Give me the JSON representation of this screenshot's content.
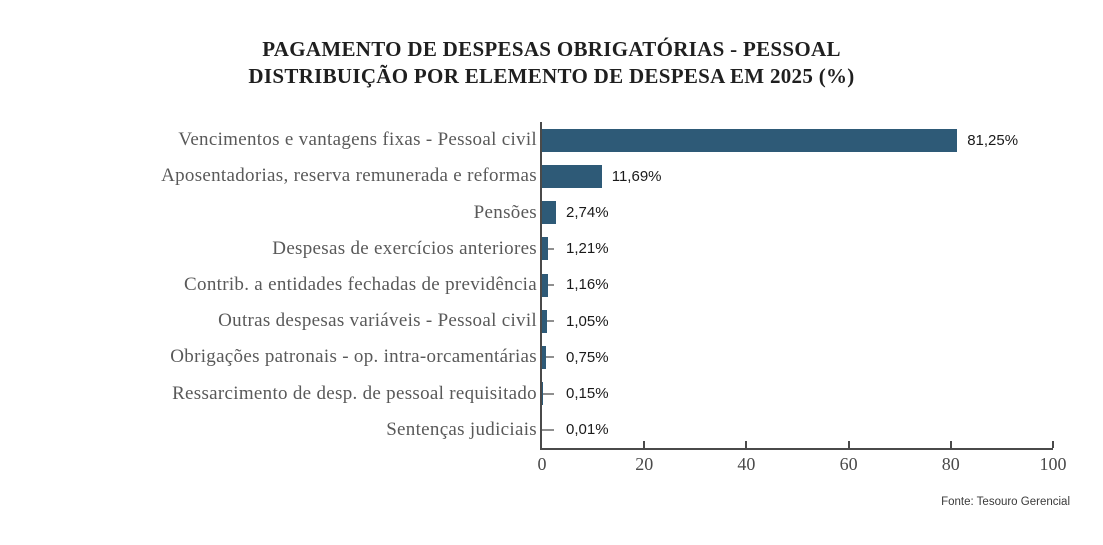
{
  "title": {
    "line1": "PAGAMENTO DE DESPESAS OBRIGATÓRIAS - PESSOAL",
    "line2": "DISTRIBUIÇÃO POR ELEMENTO DE DESPESA EM 2025 (%)"
  },
  "source": "Fonte: Tesouro Gerencial",
  "chart_data": {
    "type": "bar",
    "orientation": "horizontal",
    "title": "PAGAMENTO DE DESPESAS OBRIGATÓRIAS - PESSOAL — DISTRIBUIÇÃO POR ELEMENTO DE DESPESA EM 2025 (%)",
    "categories": [
      "Vencimentos e vantagens fixas - Pessoal civil",
      "Aposentadorias, reserva remunerada e reformas",
      "Pensões",
      "Despesas de exercícios anteriores",
      "Contrib. a entidades fechadas de previdência",
      "Outras despesas variáveis - Pessoal civil",
      "Obrigações patronais - op. intra-orcamentárias",
      "Ressarcimento de desp. de pessoal requisitado",
      "Sentenças judiciais"
    ],
    "values": [
      81.25,
      11.69,
      2.74,
      1.21,
      1.16,
      1.05,
      0.75,
      0.15,
      0.01
    ],
    "value_labels": [
      "81,25%",
      "11,69%",
      "2,74%",
      "1,21%",
      "1,16%",
      "1,05%",
      "0,75%",
      "0,15%",
      "0,01%"
    ],
    "xlabel": "",
    "ylabel": "",
    "xlim": [
      0,
      100
    ],
    "x_ticks": [
      0,
      20,
      40,
      60,
      80,
      100
    ],
    "bar_color": "#2e5a77",
    "axis_color": "#4a4a4a",
    "grid": false,
    "legend": false,
    "source": "Fonte: Tesouro Gerencial"
  }
}
